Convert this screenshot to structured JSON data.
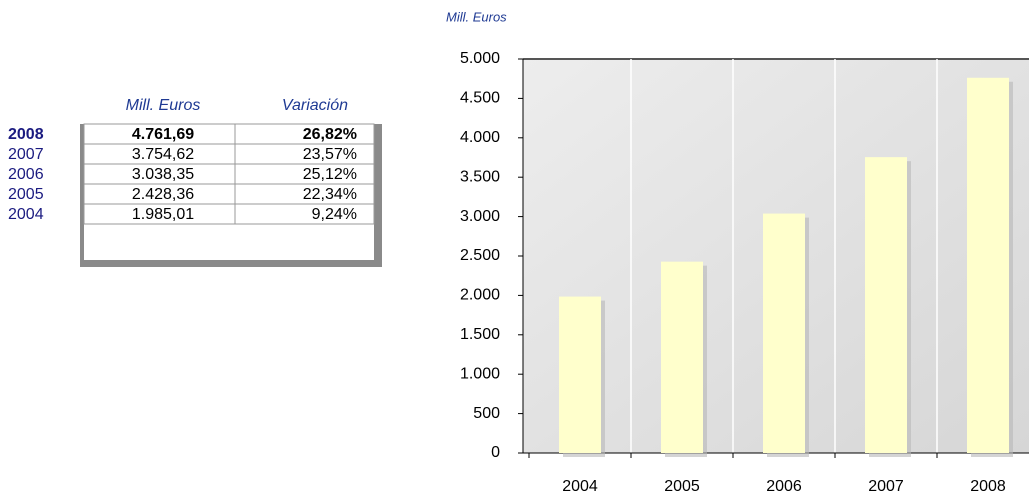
{
  "table": {
    "header": [
      "Mill. Euros",
      "Variación"
    ],
    "rows": [
      [
        "2008",
        "4.761,69",
        "26,82%"
      ],
      [
        "2007",
        "3.754,62",
        "23,57%"
      ],
      [
        "2006",
        "3.038,35",
        "25,12%"
      ],
      [
        "2005",
        "2.428,36",
        "22,34%"
      ],
      [
        "2004",
        "1.985,01",
        "9,24%"
      ]
    ]
  },
  "chart_data": {
    "type": "bar",
    "y_label": "Mill. Euros",
    "categories": [
      "2004",
      "2005",
      "2006",
      "2007",
      "2008"
    ],
    "values": [
      1985.01,
      2428.36,
      3038.35,
      3754.62,
      4761.69
    ],
    "color": "#ffffcc",
    "ylim": [
      0,
      5000
    ],
    "yticks": [
      0,
      500,
      {
        "value": 1000,
        "label": "1.000"
      },
      {
        "value": 1500,
        "label": "1.500"
      },
      {
        "value": 2000,
        "label": "2.000"
      },
      {
        "value": 2500,
        "label": "2.500"
      },
      {
        "value": 3000,
        "label": "3.000"
      },
      {
        "value": 3500,
        "label": "3.500"
      },
      {
        "value": 4000,
        "label": "4.000"
      },
      {
        "value": 4500,
        "label": "4.500"
      },
      {
        "value": 5000,
        "label": "5.000"
      }
    ]
  }
}
